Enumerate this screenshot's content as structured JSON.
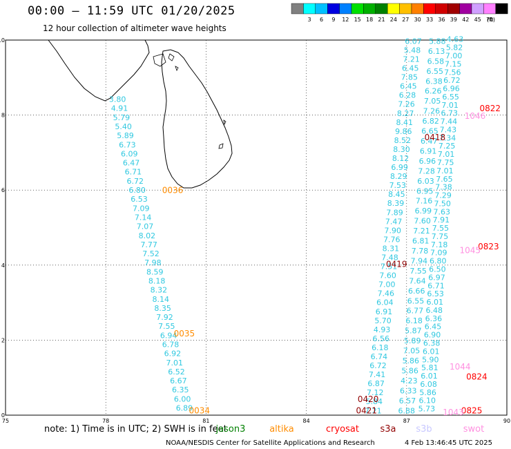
{
  "header": {
    "title": "00:00 – 11:59 UTC 01/20/2025",
    "subtitle": "12 hour collection of altimeter wave heights"
  },
  "colorbar": {
    "unit": "(ft)",
    "labels": [
      "3",
      "6",
      "9",
      "12",
      "15",
      "18",
      "21",
      "24",
      "27",
      "30",
      "33",
      "36",
      "39",
      "42",
      "45",
      "70"
    ],
    "colors": [
      "#808080",
      "#00ffff",
      "#00c0ff",
      "#0000e0",
      "#0080ff",
      "#00e000",
      "#00b000",
      "#008000",
      "#ffff00",
      "#ffc000",
      "#ff8000",
      "#ff0000",
      "#d00000",
      "#a00000",
      "#a000a0",
      "#d0a0ff",
      "#ff80ff",
      "#000000"
    ]
  },
  "axes": {
    "x_ticks": [
      "75",
      "78",
      "81",
      "84",
      "87",
      "90"
    ],
    "y_ticks": [
      "0",
      "2",
      "4",
      "6",
      "8",
      "10"
    ],
    "xlim": [
      75,
      90
    ],
    "ylim": [
      0,
      10
    ]
  },
  "colors": {
    "wave": "#30c8e0",
    "time_orange": "#ff8c00",
    "time_red": "#ff0000",
    "time_darkred": "#900000",
    "time_pink": "#ff90e0"
  },
  "tracks": [
    {
      "id": "track1",
      "start": [
        78.35,
        8.35
      ],
      "end": [
        80.35,
        0.12
      ],
      "values": [
        "3.80",
        "4.91",
        "5.79",
        "5.40",
        "5.89",
        "6.73",
        "6.09",
        "6.47",
        "6.71",
        "6.72",
        "6.80",
        "6.53",
        "7.09",
        "7.14",
        "7.07",
        "8.02",
        "7.77",
        "7.52",
        "7.98",
        "8.59",
        "8.18",
        "8.32",
        "8.14",
        "8.35",
        "7.92",
        "7.55",
        "6.94",
        "6.78",
        "6.92",
        "7.01",
        "6.52",
        "6.67",
        "6.35",
        "6.00",
        "6.89"
      ]
    },
    {
      "id": "track2",
      "start": [
        87.2,
        9.9
      ],
      "end": [
        86.0,
        0.05
      ],
      "values": [
        "6.07",
        "5.48",
        "7.21",
        "6.45",
        "7.85",
        "6.45",
        "6.28",
        "7.26",
        "8.27",
        "8.41",
        "9.86",
        "8.52",
        "8.30",
        "8.12",
        "6.99",
        "8.29",
        "7.53",
        "8.45",
        "8.39",
        "7.89",
        "7.47",
        "7.90",
        "7.76",
        "8.31",
        "7.48",
        "7.51",
        "7.60",
        "7.00",
        "7.46",
        "6.04",
        "6.91",
        "5.70",
        "4.93",
        "6.56",
        "6.18",
        "6.74",
        "6.72",
        "7.41",
        "6.87",
        "7.12",
        "5.84",
        "7.21"
      ]
    },
    {
      "id": "track3",
      "start": [
        87.92,
        9.9
      ],
      "end": [
        87.0,
        0.05
      ],
      "values": [
        "5.88",
        "6.13",
        "6.58",
        "6.55",
        "6.38",
        "6.26",
        "7.05",
        "7.26",
        "6.82",
        "6.65",
        "6.47",
        "6.91",
        "6.96",
        "7.28",
        "6.03",
        "6.95",
        "7.16",
        "6.99",
        "7.60",
        "7.21",
        "6.81",
        "7.78",
        "7.94",
        "7.55",
        "7.64",
        "6.66",
        "6.55",
        "6.77",
        "6.18",
        "5.87",
        "5.89",
        "7.05",
        "5.86",
        "5.86",
        "4.23",
        "6.33",
        "6.57",
        "6.88"
      ]
    },
    {
      "id": "track4",
      "start": [
        88.45,
        9.95
      ],
      "end": [
        87.6,
        0.1
      ],
      "values": [
        "4.63",
        "5.82",
        "7.00",
        "7.15",
        "7.56",
        "6.72",
        "6.96",
        "6.55",
        "7.01",
        "6.73",
        "7.44",
        "7.43",
        "7.34",
        "7.25",
        "7.01",
        "7.75",
        "7.01",
        "7.65",
        "7.38",
        "7.29",
        "7.50",
        "7.63",
        "7.91",
        "7.55",
        "7.75",
        "7.18",
        "7.09",
        "6.80",
        "6.50",
        "6.97",
        "6.71",
        "6.53",
        "6.01",
        "6.48",
        "6.36",
        "6.45",
        "6.90",
        "6.38",
        "6.01",
        "5.90",
        "5.81",
        "6.01",
        "6.08",
        "5.86",
        "6.10",
        "5.73"
      ]
    }
  ],
  "pass_times": [
    {
      "text": "0036",
      "lon": 80.0,
      "lat": 5.92,
      "color": "orange"
    },
    {
      "text": "0035",
      "lon": 80.35,
      "lat": 2.1,
      "color": "orange"
    },
    {
      "text": "0034",
      "lon": 80.8,
      "lat": 0.05,
      "color": "orange"
    },
    {
      "text": "0419",
      "lon": 86.7,
      "lat": 3.95,
      "color": "darkred"
    },
    {
      "text": "0420",
      "lon": 85.85,
      "lat": 0.35,
      "color": "darkred"
    },
    {
      "text": "0421",
      "lon": 85.8,
      "lat": 0.05,
      "color": "darkred"
    },
    {
      "text": "0418",
      "lon": 87.85,
      "lat": 7.33,
      "color": "darkred"
    },
    {
      "text": "0822",
      "lon": 89.5,
      "lat": 8.1,
      "color": "red"
    },
    {
      "text": "1046",
      "lon": 89.05,
      "lat": 7.9,
      "color": "pink"
    },
    {
      "text": "0823",
      "lon": 89.45,
      "lat": 4.42,
      "color": "red"
    },
    {
      "text": "1045",
      "lon": 88.9,
      "lat": 4.32,
      "color": "pink"
    },
    {
      "text": "1044",
      "lon": 88.6,
      "lat": 1.22,
      "color": "pink"
    },
    {
      "text": "0824",
      "lon": 89.1,
      "lat": 0.95,
      "color": "red"
    },
    {
      "text": "0825",
      "lon": 88.95,
      "lat": 0.05,
      "color": "red"
    },
    {
      "text": "1043",
      "lon": 88.4,
      "lat": 0.0,
      "color": "pink"
    }
  ],
  "footer": {
    "note": "note: 1) Time is in UTC; 2) SWH is in feet",
    "satellites": [
      {
        "name": "jason3",
        "color": "#008000"
      },
      {
        "name": "altika",
        "color": "#ff8c00"
      },
      {
        "name": "cryosat",
        "color": "#ff0000"
      },
      {
        "name": "s3a",
        "color": "#900000"
      },
      {
        "name": "s3b",
        "color": "#c8c8ff"
      },
      {
        "name": "swot",
        "color": "#ff90e0"
      }
    ],
    "credit": "NOAA/NESDIS Center for Satellite Applications and Research",
    "generated": "4 Feb 13:46:45 UTC 2025"
  }
}
